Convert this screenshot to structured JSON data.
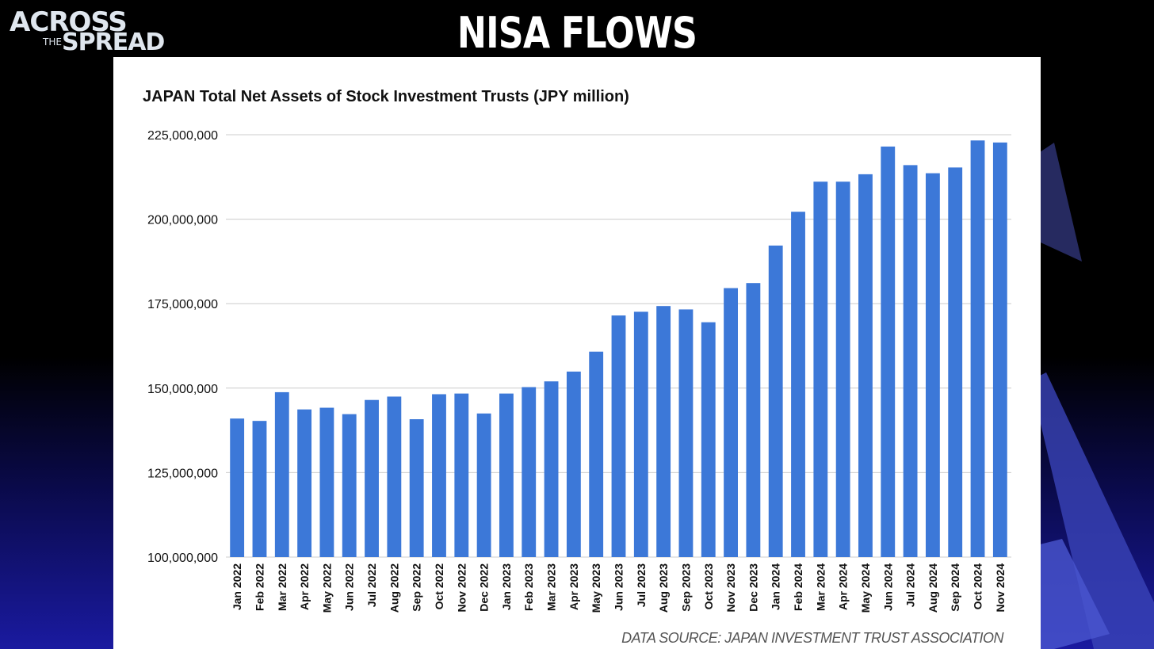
{
  "header": {
    "logo_line1": "ACROSS",
    "logo_line2": "THE",
    "logo_line3": "SPREAD",
    "title": "NISA FLOWS"
  },
  "footer": {
    "source": "DATA SOURCE: JAPAN INVESTMENT TRUST ASSOCIATION"
  },
  "colors": {
    "bar": "#3c78d8",
    "grid": "#cccccc"
  },
  "chart_data": {
    "type": "bar",
    "title": "JAPAN Total Net Assets of Stock Investment Trusts (JPY million)",
    "xlabel": "",
    "ylabel": "",
    "ylim": [
      100000000,
      225000000
    ],
    "yticks": [
      100000000,
      125000000,
      150000000,
      175000000,
      200000000,
      225000000
    ],
    "ytick_labels": [
      "100,000,000",
      "125,000,000",
      "150,000,000",
      "175,000,000",
      "200,000,000",
      "225,000,000"
    ],
    "grid": true,
    "categories": [
      "Jan 2022",
      "Feb 2022",
      "Mar 2022",
      "Apr 2022",
      "May 2022",
      "Jun 2022",
      "Jul 2022",
      "Aug 2022",
      "Sep 2022",
      "Oct 2022",
      "Nov 2022",
      "Dec 2022",
      "Jan 2023",
      "Feb 2023",
      "Mar 2023",
      "Apr 2023",
      "May 2023",
      "Jun 2023",
      "Jul 2023",
      "Aug 2023",
      "Sep 2023",
      "Oct 2023",
      "Nov 2023",
      "Dec 2023",
      "Jan 2024",
      "Feb 2024",
      "Mar 2024",
      "Apr 2024",
      "May 2024",
      "Jun 2024",
      "Jul 2024",
      "Aug 2024",
      "Sep 2024",
      "Oct 2024",
      "Nov 2024"
    ],
    "values": [
      141000000,
      140300000,
      148800000,
      143700000,
      144200000,
      142300000,
      146500000,
      147500000,
      140800000,
      148200000,
      148400000,
      142500000,
      148400000,
      150300000,
      152000000,
      154900000,
      160800000,
      171500000,
      172600000,
      174300000,
      173300000,
      169500000,
      179600000,
      181100000,
      192200000,
      202200000,
      211100000,
      211100000,
      213300000,
      221500000,
      216000000,
      213600000,
      215300000,
      223300000,
      222700000
    ]
  }
}
